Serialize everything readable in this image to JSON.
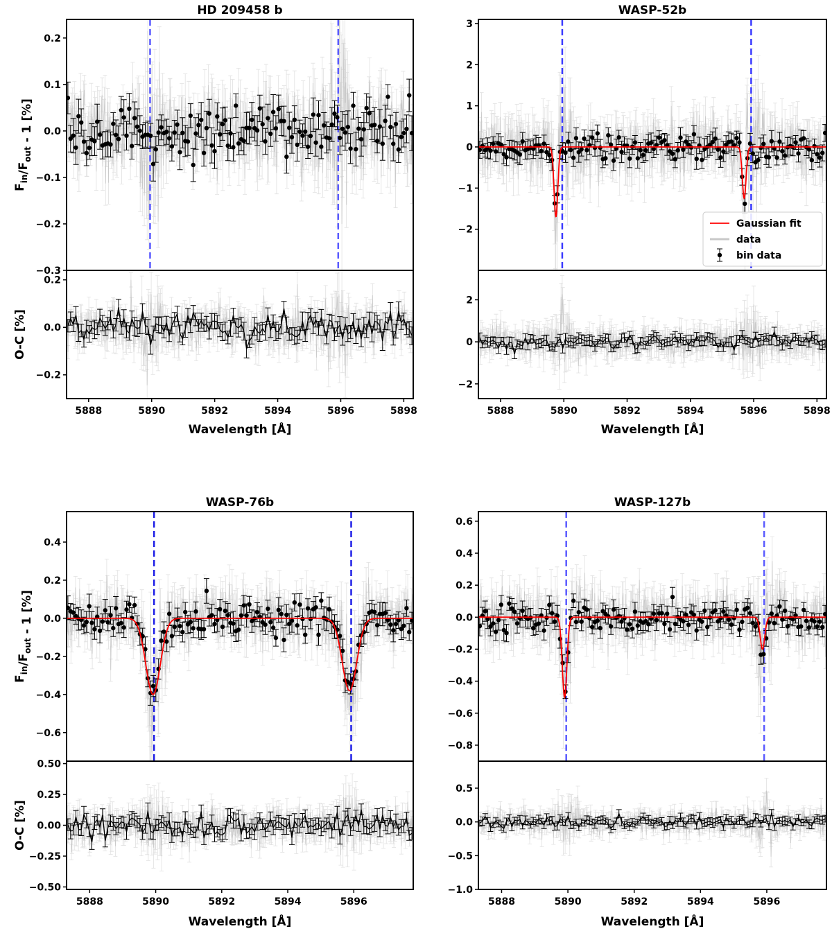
{
  "figure": {
    "background": "#ffffff"
  },
  "chart_data": [
    {
      "type": "scatter",
      "title": "HD 209458 b",
      "xlabel": "Wavelength [Å]",
      "ylabel_top": "F_in/F_out - 1 [%]",
      "ylabel_bottom": "O-C [%]",
      "xlim": [
        5887.3,
        5898.3
      ],
      "xticks": [
        5888,
        5890,
        5892,
        5894,
        5896,
        5898
      ],
      "top": {
        "ylim": [
          -0.3,
          0.24
        ],
        "yticks": [
          -0.3,
          -0.2,
          -0.1,
          0.0,
          0.1,
          0.2
        ],
        "noise": 0.045,
        "errbar": 0.04,
        "bin_noise": 0.03,
        "bin_err": 0.03
      },
      "bottom": {
        "ylim": [
          -0.3,
          0.24
        ],
        "yticks": [
          -0.2,
          0.0,
          0.2
        ],
        "noise": 0.045,
        "errbar": 0.04,
        "bin_noise": 0.03,
        "bin_err": 0.03
      },
      "lines": [
        5889.95,
        5895.92
      ],
      "line_color": "#5a5aff",
      "fit": null,
      "legend": null
    },
    {
      "type": "scatter",
      "title": "WASP-52b",
      "xlabel": "Wavelength [Å]",
      "ylabel_top": "",
      "ylabel_bottom": "",
      "xlim": [
        5887.3,
        5898.3
      ],
      "xticks": [
        5888,
        5890,
        5892,
        5894,
        5896,
        5898
      ],
      "top": {
        "ylim": [
          -3.0,
          3.1
        ],
        "yticks": [
          -2,
          -1,
          0,
          1,
          2,
          3
        ],
        "noise": 0.35,
        "errbar": 0.4,
        "bin_noise": 0.15,
        "bin_err": 0.2
      },
      "bottom": {
        "ylim": [
          -2.7,
          3.4
        ],
        "yticks": [
          -2,
          0,
          2
        ],
        "noise": 0.35,
        "errbar": 0.4,
        "bin_noise": 0.15,
        "bin_err": 0.2
      },
      "lines": [
        5889.95,
        5895.92
      ],
      "line_color": "#3b3bff",
      "fit": {
        "lines": [
          5889.75,
          5895.7
        ],
        "depths": [
          1.7,
          1.25
        ],
        "sigma": 0.06,
        "color": "#ff0000"
      },
      "legend": {
        "position": "lower right",
        "fit_label": "Gaussian fit",
        "data_label": "data",
        "bin_label": "bin data"
      }
    },
    {
      "type": "scatter",
      "title": "WASP-76b",
      "xlabel": "Wavelength [Å]",
      "ylabel_top": "F_in/F_out - 1 [%]",
      "ylabel_bottom": "O-C [%]",
      "xlim": [
        5887.3,
        5897.8
      ],
      "xticks": [
        5888,
        5890,
        5892,
        5894,
        5896
      ],
      "top": {
        "ylim": [
          -0.75,
          0.56
        ],
        "yticks": [
          -0.6,
          -0.4,
          -0.2,
          0.0,
          0.2,
          0.4
        ],
        "noise": 0.08,
        "errbar": 0.07,
        "bin_noise": 0.045,
        "bin_err": 0.05
      },
      "bottom": {
        "ylim": [
          -0.52,
          0.52
        ],
        "yticks": [
          -0.5,
          -0.25,
          0.0,
          0.25,
          0.5
        ],
        "noise": 0.07,
        "errbar": 0.07,
        "bin_noise": 0.05,
        "bin_err": 0.05
      },
      "lines": [
        5889.95,
        5895.92
      ],
      "line_color": "#1f1fe6",
      "fit": {
        "lines": [
          5889.92,
          5895.87
        ],
        "depths": [
          0.4,
          0.38
        ],
        "sigma": 0.22,
        "color": "#ff0000"
      },
      "legend": null
    },
    {
      "type": "scatter",
      "title": "WASP-127b",
      "xlabel": "Wavelength [Å]",
      "ylabel_top": "",
      "ylabel_bottom": "",
      "xlim": [
        5887.3,
        5897.8
      ],
      "xticks": [
        5888,
        5890,
        5892,
        5894,
        5896
      ],
      "top": {
        "ylim": [
          -0.9,
          0.66
        ],
        "yticks": [
          -0.8,
          -0.6,
          -0.4,
          -0.2,
          0.0,
          0.2,
          0.4,
          0.6
        ],
        "noise": 0.09,
        "errbar": 0.08,
        "bin_noise": 0.05,
        "bin_err": 0.05
      },
      "bottom": {
        "ylim": [
          -1.0,
          0.9
        ],
        "yticks": [
          -1.0,
          -0.5,
          0.0,
          0.5
        ],
        "noise": 0.09,
        "errbar": 0.08,
        "bin_noise": 0.05,
        "bin_err": 0.05
      },
      "lines": [
        5889.95,
        5895.92
      ],
      "line_color": "#5a5aff",
      "fit": {
        "lines": [
          5889.9,
          5895.87
        ],
        "depths": [
          0.5,
          0.2
        ],
        "sigma": 0.07,
        "color": "#ff0000"
      },
      "legend": null
    }
  ]
}
